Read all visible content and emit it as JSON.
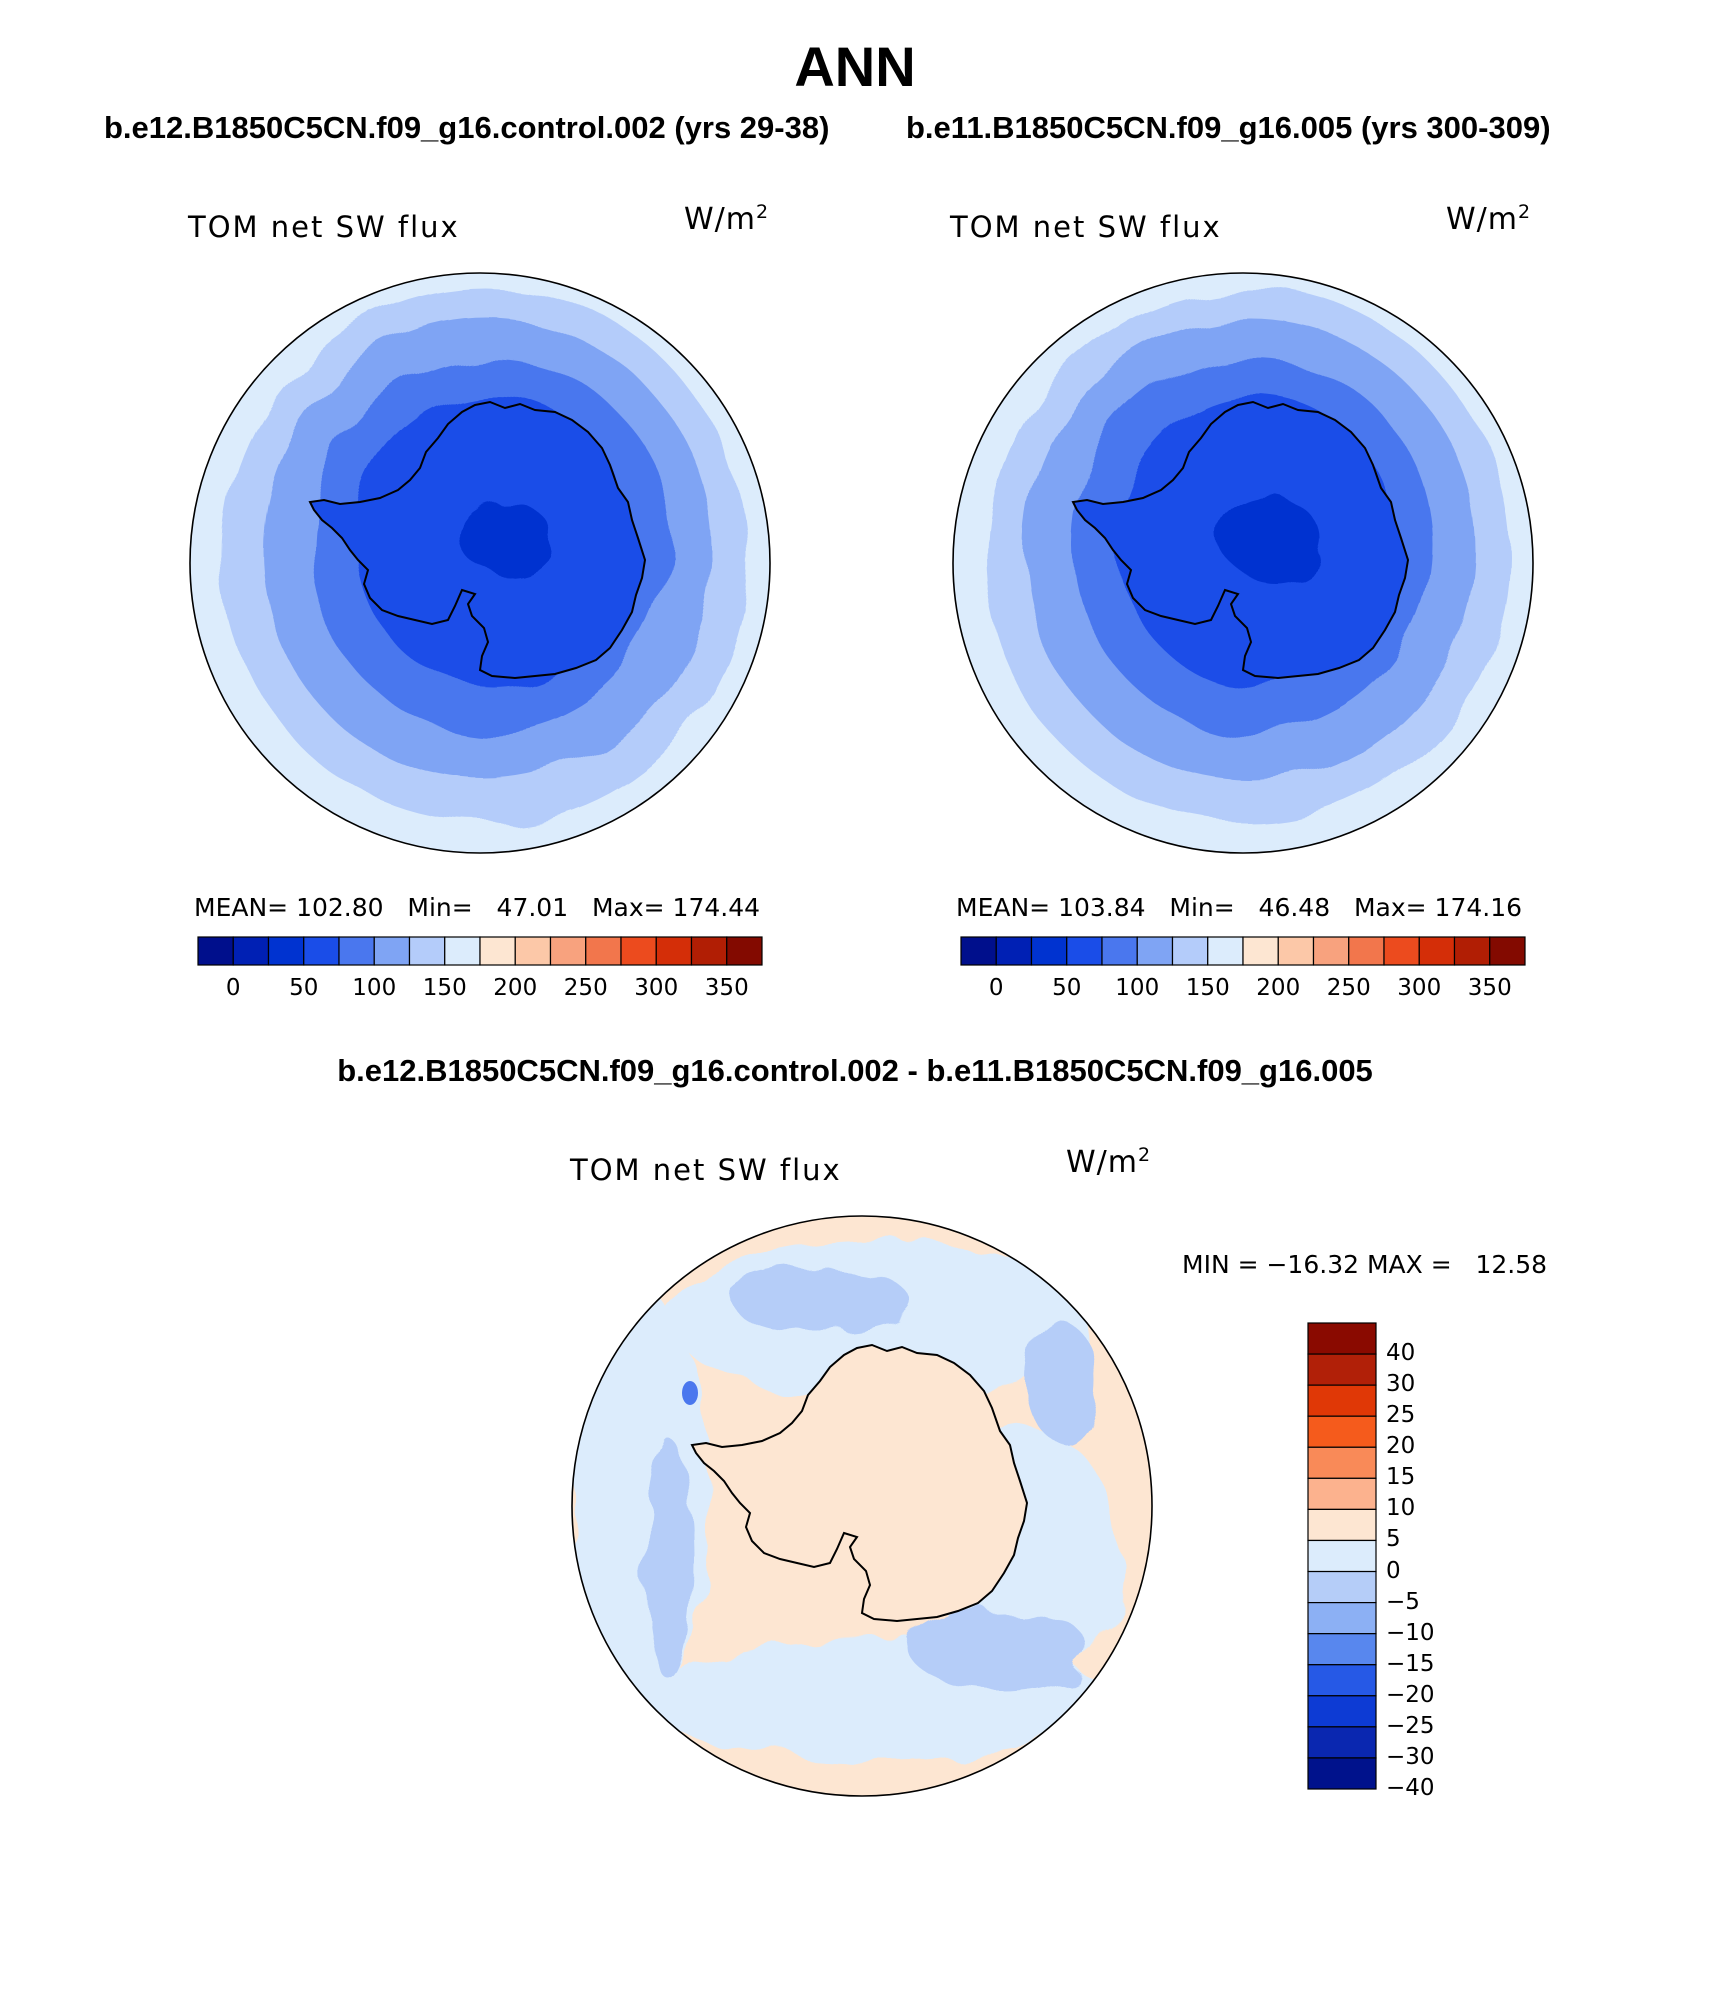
{
  "main_title": "ANN",
  "panels": [
    {
      "case_title": "b.e12.B1850C5CN.f09_g16.control.002 (yrs 29-38)",
      "variable_label": "TOM net SW flux",
      "units": "W/m",
      "units_sup": "2",
      "stats": {
        "mean": "MEAN= 102.80",
        "min": "Min=   47.01",
        "max": "Max= 174.44"
      }
    },
    {
      "case_title": "b.e11.B1850C5CN.f09_g16.005 (yrs 300-309)",
      "variable_label": "TOM net SW flux",
      "units": "W/m",
      "units_sup": "2",
      "stats": {
        "mean": "MEAN= 103.84",
        "min": "Min=   46.48",
        "max": "Max= 174.16"
      }
    }
  ],
  "colorbar": {
    "colors": [
      "#000f8c",
      "#0020b4",
      "#0033d0",
      "#1a4de8",
      "#4a77ee",
      "#7fa4f4",
      "#b4ccfa",
      "#dcecfc",
      "#fde6d2",
      "#fcc8a8",
      "#f8a27e",
      "#f2764c",
      "#ec4b1e",
      "#d42e08",
      "#b11e04",
      "#830a00"
    ],
    "tick_labels": [
      "0",
      "50",
      "100",
      "150",
      "200",
      "250",
      "300",
      "350"
    ]
  },
  "difference": {
    "title": "b.e12.B1850C5CN.f09_g16.control.002 - b.e11.B1850C5CN.f09_g16.005",
    "variable_label": "TOM net SW flux",
    "units": "W/m",
    "units_sup": "2",
    "minmax": "MIN = −16.32 MAX =   12.58",
    "colorbar_colors_top_to_bottom": [
      "#8a0a00",
      "#b12008",
      "#e03806",
      "#f55b1c",
      "#f98a58",
      "#fcb28e",
      "#fde6d2",
      "#dcecfc",
      "#b5cdf8",
      "#8cb0f4",
      "#5887ee",
      "#2659e6",
      "#0d3bd4",
      "#0a27b0",
      "#00128c"
    ],
    "tick_labels": [
      "40",
      "30",
      "25",
      "20",
      "15",
      "10",
      "5",
      "0",
      "−5",
      "−10",
      "−15",
      "−20",
      "−25",
      "−30",
      "−40"
    ]
  }
}
